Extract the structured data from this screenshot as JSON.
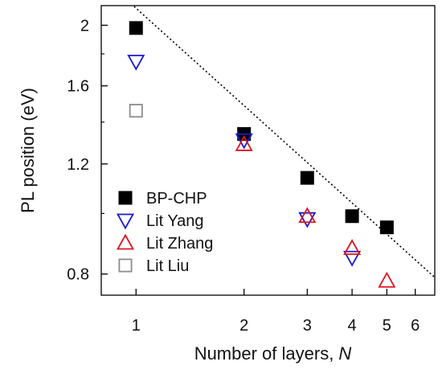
{
  "chart_data": {
    "type": "scatter",
    "xscale": "log",
    "yscale": "log",
    "xlabel": "Number of layers, ",
    "xlabel_var": "N",
    "ylabel": "PL position (eV)",
    "xlim": [
      0.8,
      6.8
    ],
    "ylim": [
      0.74,
      2.15
    ],
    "xticks": [
      {
        "value": 1,
        "label": "1"
      },
      {
        "value": 2,
        "label": "2"
      },
      {
        "value": 3,
        "label": "3"
      },
      {
        "value": 4,
        "label": "4"
      },
      {
        "value": 5,
        "label": "5"
      },
      {
        "value": 6,
        "label": "6"
      }
    ],
    "yticks": [
      {
        "value": 0.8,
        "label": "0.8"
      },
      {
        "value": 1.2,
        "label": "1.2"
      },
      {
        "value": 1.6,
        "label": "1.6"
      },
      {
        "value": 2.0,
        "label": "2"
      }
    ],
    "legend_position": "bottom-left",
    "series": [
      {
        "name": "BP-CHP",
        "marker": "square-filled",
        "color": "#000000",
        "points": [
          {
            "x": 1,
            "y": 1.98
          },
          {
            "x": 2,
            "y": 1.34
          },
          {
            "x": 3,
            "y": 1.14
          },
          {
            "x": 4,
            "y": 0.99
          },
          {
            "x": 5,
            "y": 0.95
          }
        ]
      },
      {
        "name": "Lit Yang",
        "marker": "triangle-down-open",
        "color": "#1a1ad4",
        "points": [
          {
            "x": 1,
            "y": 1.75
          },
          {
            "x": 2,
            "y": 1.31
          },
          {
            "x": 3,
            "y": 0.98
          },
          {
            "x": 4,
            "y": 0.85
          }
        ]
      },
      {
        "name": "Lit Zhang",
        "marker": "triangle-up-open",
        "color": "#e0141e",
        "points": [
          {
            "x": 2,
            "y": 1.29
          },
          {
            "x": 3,
            "y": 0.99
          },
          {
            "x": 4,
            "y": 0.88
          },
          {
            "x": 5,
            "y": 0.78
          }
        ]
      },
      {
        "name": "Lit Liu",
        "marker": "square-open",
        "color": "#8c8c8c",
        "points": [
          {
            "x": 1,
            "y": 1.46
          }
        ]
      }
    ],
    "fit_line": {
      "style": "dotted",
      "color": "#000000",
      "points": [
        {
          "x": 0.8,
          "y": 2.39
        },
        {
          "x": 6.8,
          "y": 0.79
        }
      ]
    }
  }
}
